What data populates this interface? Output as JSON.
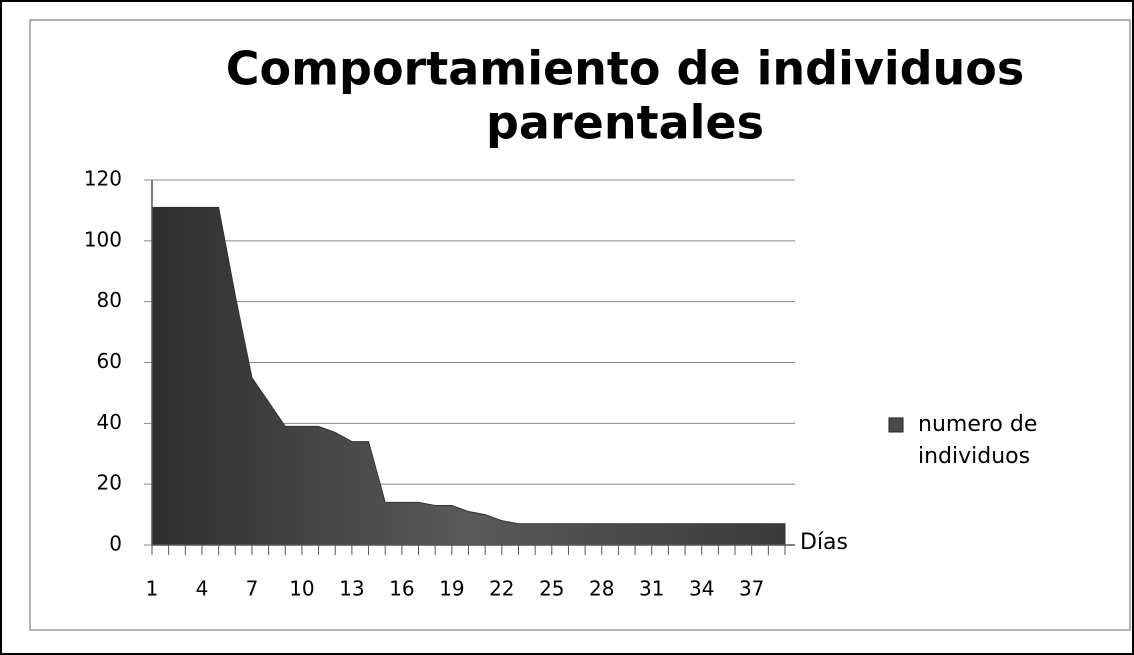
{
  "chart_data": {
    "type": "area",
    "title": [
      "Comportamiento de  individuos",
      "parentales"
    ],
    "x_label": "Días",
    "categories": [
      1,
      null,
      null,
      4,
      null,
      null,
      7,
      null,
      null,
      10,
      null,
      null,
      13,
      null,
      null,
      16,
      null,
      null,
      19,
      null,
      null,
      22,
      null,
      null,
      25,
      null,
      null,
      28,
      null,
      null,
      31,
      null,
      null,
      34,
      null,
      null,
      37,
      null,
      null
    ],
    "series": [
      {
        "name": "numero de individuos",
        "color": "#4a4a4a",
        "values": [
          111,
          111,
          111,
          111,
          111,
          82,
          55,
          47,
          39,
          39,
          39,
          37,
          34,
          34,
          14,
          14,
          14,
          13,
          13,
          11,
          10,
          8,
          7,
          7,
          7,
          7,
          7,
          7,
          7,
          7,
          7,
          7,
          7,
          7,
          7,
          7,
          7,
          7,
          7
        ]
      }
    ],
    "ylim": [
      0,
      120
    ],
    "yticks": [
      0,
      20,
      40,
      60,
      80,
      100,
      120
    ],
    "grid": true,
    "legend": "right"
  }
}
